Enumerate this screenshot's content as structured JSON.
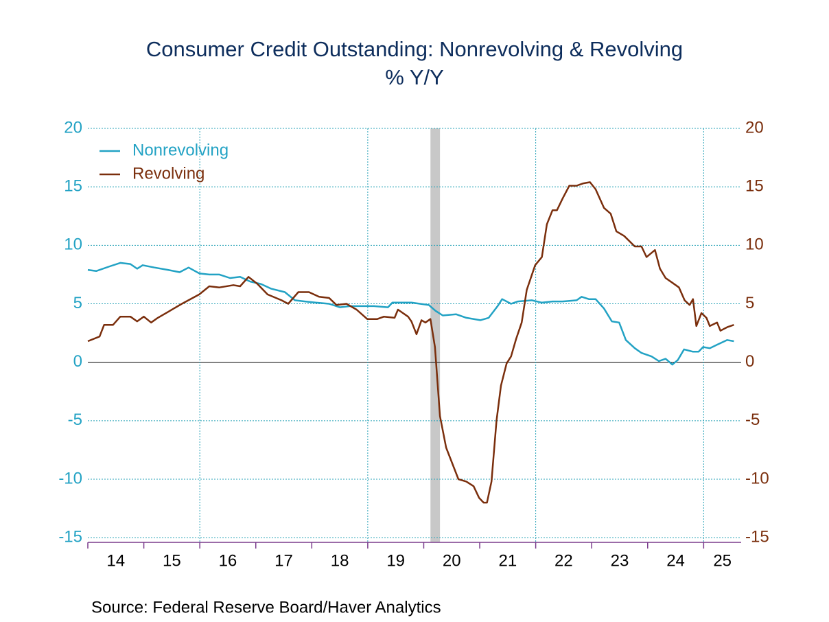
{
  "chart_data": {
    "type": "line",
    "title": "Consumer Credit Outstanding: Nonrevolving & Revolving",
    "subtitle": "% Y/Y",
    "source": "Source:  Federal Reserve Board/Haver Analytics",
    "xlim": [
      14,
      25.67
    ],
    "xticks": [
      14,
      15,
      16,
      17,
      18,
      19,
      20,
      21,
      22,
      23,
      24,
      25
    ],
    "xgrid": [
      16,
      19,
      22,
      25
    ],
    "ylim": [
      -15.4,
      20
    ],
    "yticks": [
      -15,
      -10,
      -5,
      0,
      5,
      10,
      15,
      20
    ],
    "y2lim": [
      -15.4,
      20
    ],
    "y2ticks": [
      -15,
      -10,
      -5,
      0,
      5,
      10,
      15,
      20
    ],
    "grid": true,
    "legend": "top-left",
    "recession": [
      20.12,
      20.29
    ],
    "series": [
      {
        "name": "Nonrevolving",
        "color": "#22a2c4",
        "x": [
          14.0,
          14.15,
          14.39,
          14.58,
          14.76,
          14.88,
          14.98,
          15.19,
          15.43,
          15.64,
          15.8,
          15.99,
          16.17,
          16.35,
          16.54,
          16.72,
          16.9,
          17.09,
          17.27,
          17.52,
          17.7,
          17.88,
          18.07,
          18.31,
          18.5,
          18.68,
          18.93,
          19.11,
          19.36,
          19.44,
          19.78,
          20.09,
          20.21,
          20.34,
          20.58,
          20.76,
          21.01,
          21.16,
          21.32,
          21.4,
          21.56,
          21.68,
          21.93,
          22.11,
          22.3,
          22.48,
          22.73,
          22.82,
          22.95,
          23.07,
          23.22,
          23.36,
          23.49,
          23.61,
          23.77,
          23.89,
          24.07,
          24.2,
          24.32,
          24.44,
          24.54,
          24.65,
          24.81,
          24.91,
          24.99,
          25.11,
          25.24,
          25.42,
          25.54
        ],
        "values": [
          7.9,
          7.8,
          8.2,
          8.5,
          8.4,
          8.0,
          8.3,
          8.1,
          7.9,
          7.7,
          8.1,
          7.6,
          7.5,
          7.5,
          7.2,
          7.3,
          6.9,
          6.7,
          6.3,
          6.0,
          5.3,
          5.2,
          5.1,
          5.0,
          4.7,
          4.8,
          4.8,
          4.8,
          4.7,
          5.1,
          5.1,
          4.9,
          4.4,
          4.0,
          4.1,
          3.8,
          3.6,
          3.8,
          4.8,
          5.4,
          5.0,
          5.2,
          5.3,
          5.1,
          5.2,
          5.2,
          5.3,
          5.6,
          5.4,
          5.4,
          4.6,
          3.5,
          3.4,
          1.9,
          1.2,
          0.8,
          0.5,
          0.1,
          0.3,
          -0.2,
          0.2,
          1.1,
          0.9,
          0.9,
          1.3,
          1.2,
          1.5,
          1.9,
          1.8
        ]
      },
      {
        "name": "Revolving",
        "color": "#7a2e0c",
        "axis": "y2",
        "x": [
          14.0,
          14.21,
          14.29,
          14.45,
          14.58,
          14.76,
          14.88,
          15.0,
          15.13,
          15.25,
          15.43,
          15.68,
          15.99,
          16.17,
          16.35,
          16.6,
          16.72,
          16.87,
          17.03,
          17.21,
          17.46,
          17.58,
          17.76,
          17.95,
          18.13,
          18.31,
          18.44,
          18.62,
          18.8,
          18.99,
          19.17,
          19.29,
          19.48,
          19.54,
          19.72,
          19.78,
          19.87,
          19.96,
          20.03,
          20.12,
          20.2,
          20.29,
          20.4,
          20.62,
          20.76,
          20.89,
          20.99,
          21.07,
          21.13,
          21.21,
          21.3,
          21.38,
          21.48,
          21.56,
          21.65,
          21.75,
          21.84,
          21.99,
          22.11,
          22.2,
          22.3,
          22.38,
          22.48,
          22.6,
          22.73,
          22.85,
          22.97,
          23.07,
          23.22,
          23.34,
          23.44,
          23.58,
          23.77,
          23.89,
          23.98,
          24.13,
          24.22,
          24.32,
          24.44,
          24.56,
          24.66,
          24.75,
          24.81,
          24.87,
          24.96,
          25.05,
          25.11,
          25.24,
          25.3,
          25.42,
          25.54
        ],
        "values": [
          1.8,
          2.2,
          3.2,
          3.2,
          3.9,
          3.9,
          3.5,
          3.9,
          3.4,
          3.8,
          4.3,
          5.0,
          5.8,
          6.5,
          6.4,
          6.6,
          6.5,
          7.3,
          6.7,
          5.8,
          5.3,
          5.0,
          6.0,
          6.0,
          5.6,
          5.5,
          4.9,
          5.0,
          4.5,
          3.7,
          3.7,
          3.9,
          3.8,
          4.5,
          3.9,
          3.5,
          2.4,
          3.6,
          3.4,
          3.7,
          1.3,
          -4.6,
          -7.3,
          -10.0,
          -10.2,
          -10.6,
          -11.6,
          -12.0,
          -12.0,
          -10.2,
          -5.0,
          -2.0,
          -0.1,
          0.5,
          2.0,
          3.4,
          6.2,
          8.3,
          9.0,
          11.8,
          13.0,
          13.0,
          14.0,
          15.1,
          15.1,
          15.3,
          15.4,
          14.8,
          13.2,
          12.7,
          11.2,
          10.8,
          9.9,
          9.9,
          9.0,
          9.6,
          8.0,
          7.2,
          6.8,
          6.4,
          5.3,
          4.9,
          5.4,
          3.1,
          4.2,
          3.8,
          3.1,
          3.4,
          2.7,
          3.0,
          3.2
        ]
      }
    ]
  }
}
